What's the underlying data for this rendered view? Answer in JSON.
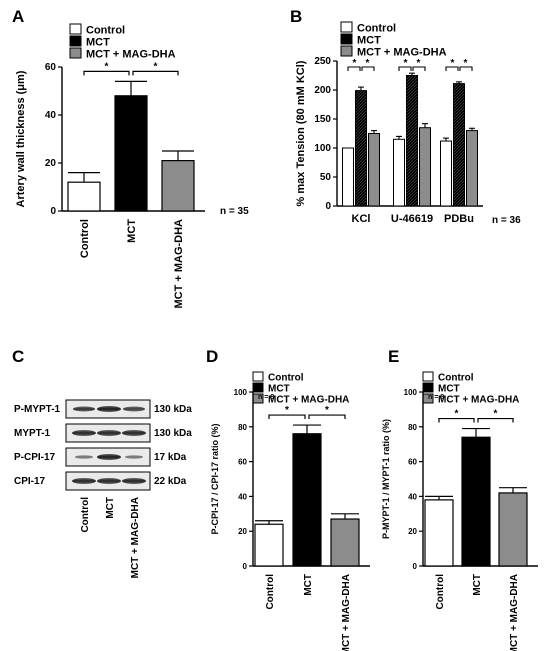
{
  "legend_labels": [
    "Control",
    "MCT",
    "MCT + MAG-DHA"
  ],
  "colors": {
    "control": "#ffffff",
    "mct": "#000000",
    "magdha": "#8c8c8c"
  },
  "chart_data": [
    {
      "panel": "A",
      "type": "bar",
      "categories": [
        "Control",
        "MCT",
        "MCT + MAG-DHA"
      ],
      "values": [
        12,
        48,
        21
      ],
      "errors": [
        4,
        6,
        4
      ],
      "ylabel": "Artery wall thickness (μm)",
      "ylim": [
        0,
        60
      ],
      "yticks": [
        0,
        20,
        40,
        60
      ],
      "note": "n = 35",
      "significance": "*"
    },
    {
      "panel": "B",
      "type": "bar",
      "categories": [
        "KCl",
        "U-46619",
        "PDBu"
      ],
      "series": [
        {
          "name": "Control",
          "values": [
            100,
            115,
            112
          ],
          "errors": [
            0,
            5,
            5
          ]
        },
        {
          "name": "MCT",
          "values": [
            199,
            225,
            211
          ],
          "errors": [
            6,
            4,
            3
          ]
        },
        {
          "name": "MCT + MAG-DHA",
          "values": [
            125,
            135,
            130
          ],
          "errors": [
            5,
            7,
            4
          ]
        }
      ],
      "ylabel": "% max Tension (80 mM KCl)",
      "ylim": [
        0,
        250
      ],
      "yticks": [
        0,
        50,
        100,
        150,
        200,
        250
      ],
      "note": "n = 36",
      "significance": "*"
    },
    {
      "panel": "D",
      "type": "bar",
      "categories": [
        "Control",
        "MCT",
        "MCT + MAG-DHA"
      ],
      "values": [
        24,
        76,
        27
      ],
      "errors": [
        2,
        5,
        3
      ],
      "ylabel": "P-CPI-17 / CPI-17 ratio (%)",
      "ylim": [
        0,
        100
      ],
      "yticks": [
        0,
        20,
        40,
        60,
        80,
        100
      ],
      "note": "n = 8",
      "significance": "*"
    },
    {
      "panel": "E",
      "type": "bar",
      "categories": [
        "Control",
        "MCT",
        "MCT + MAG-DHA"
      ],
      "values": [
        38,
        74,
        42
      ],
      "errors": [
        2,
        5,
        3
      ],
      "ylabel": "P-MYPT-1 / MYPT-1 ratio (%)",
      "ylim": [
        0,
        100
      ],
      "yticks": [
        0,
        20,
        40,
        60,
        80,
        100
      ],
      "note": "n = 8",
      "significance": "*"
    }
  ],
  "western_blot": {
    "panel": "C",
    "rows": [
      {
        "protein": "P-MYPT-1",
        "size": "130 kDa"
      },
      {
        "protein": "MYPT-1",
        "size": "130 kDa"
      },
      {
        "protein": "P-CPI-17",
        "size": "17 kDa"
      },
      {
        "protein": "CPI-17",
        "size": "22 kDa"
      }
    ],
    "lanes": [
      "Control",
      "MCT",
      "MCT + MAG-DHA"
    ]
  }
}
